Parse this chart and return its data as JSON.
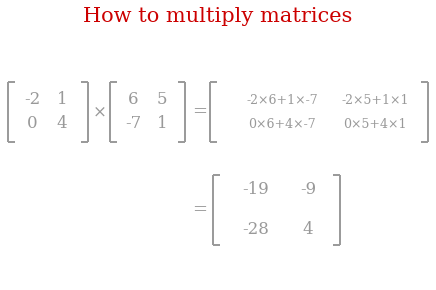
{
  "title": "How to multiply matrices",
  "title_color": "#cc0000",
  "title_fontsize": 15,
  "bg_color": "#ffffff",
  "text_color": "#999999",
  "bracket_color": "#999999",
  "matrix1": [
    [
      "-2",
      "1"
    ],
    [
      "0",
      "4"
    ]
  ],
  "matrix2": [
    [
      "6",
      "5"
    ],
    [
      "-7",
      "1"
    ]
  ],
  "result_expr": [
    [
      "-2×6+1×-7",
      "-2×5+1×1"
    ],
    [
      "0×6+4×-7",
      "0×5+4×1"
    ]
  ],
  "result_vals": [
    [
      "-19",
      "-9"
    ],
    [
      "-28",
      "4"
    ]
  ],
  "times_symbol": "×",
  "equals_symbol": "="
}
